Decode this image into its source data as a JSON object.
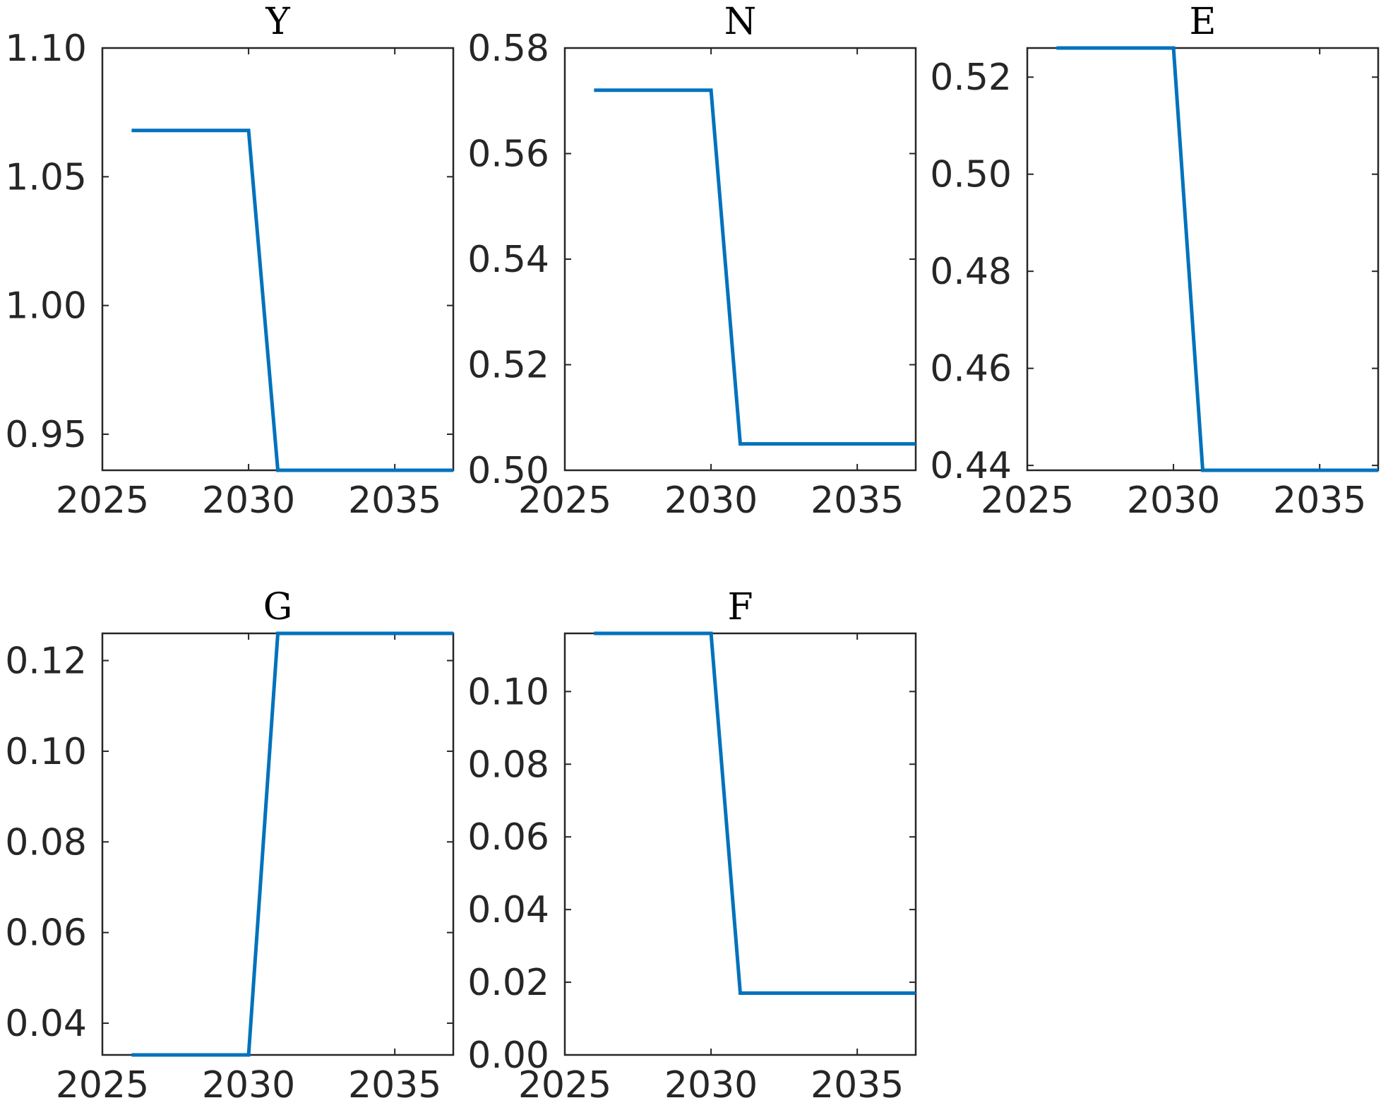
{
  "chart_data": [
    {
      "type": "line",
      "title": "Y",
      "xlabel": "",
      "ylabel": "",
      "xlim": [
        2025,
        2037
      ],
      "ylim": [
        0.936,
        1.1
      ],
      "xticks": [
        2025,
        2030,
        2035
      ],
      "xtick_labels": [
        "2025",
        "2030",
        "2035"
      ],
      "yticks": [
        0.95,
        1.0,
        1.05,
        1.1
      ],
      "ytick_labels": [
        "0.95",
        "1.00",
        "1.05",
        "1.10"
      ],
      "grid": false,
      "series": [
        {
          "color": "#0072BD",
          "x": [
            2026,
            2030,
            2031,
            2037
          ],
          "y": [
            1.068,
            1.068,
            0.936,
            0.936
          ]
        }
      ]
    },
    {
      "type": "line",
      "title": "N",
      "xlabel": "",
      "ylabel": "",
      "xlim": [
        2025,
        2037
      ],
      "ylim": [
        0.5,
        0.58
      ],
      "xticks": [
        2025,
        2030,
        2035
      ],
      "xtick_labels": [
        "2025",
        "2030",
        "2035"
      ],
      "yticks": [
        0.5,
        0.52,
        0.54,
        0.56,
        0.58
      ],
      "ytick_labels": [
        "0.50",
        "0.52",
        "0.54",
        "0.56",
        "0.58"
      ],
      "grid": false,
      "series": [
        {
          "color": "#0072BD",
          "x": [
            2026,
            2030,
            2031,
            2037
          ],
          "y": [
            0.572,
            0.572,
            0.505,
            0.505
          ]
        }
      ]
    },
    {
      "type": "line",
      "title": "E",
      "xlabel": "",
      "ylabel": "",
      "xlim": [
        2025,
        2037
      ],
      "ylim": [
        0.439,
        0.526
      ],
      "xticks": [
        2025,
        2030,
        2035
      ],
      "xtick_labels": [
        "2025",
        "2030",
        "2035"
      ],
      "yticks": [
        0.44,
        0.46,
        0.48,
        0.5,
        0.52
      ],
      "ytick_labels": [
        "0.44",
        "0.46",
        "0.48",
        "0.50",
        "0.52"
      ],
      "grid": false,
      "series": [
        {
          "color": "#0072BD",
          "x": [
            2026,
            2030,
            2031,
            2037
          ],
          "y": [
            0.526,
            0.526,
            0.439,
            0.439
          ]
        }
      ]
    },
    {
      "type": "line",
      "title": "G",
      "xlabel": "",
      "ylabel": "",
      "xlim": [
        2025,
        2037
      ],
      "ylim": [
        0.033,
        0.126
      ],
      "xticks": [
        2025,
        2030,
        2035
      ],
      "xtick_labels": [
        "2025",
        "2030",
        "2035"
      ],
      "yticks": [
        0.04,
        0.06,
        0.08,
        0.1,
        0.12
      ],
      "ytick_labels": [
        "0.04",
        "0.06",
        "0.08",
        "0.10",
        "0.12"
      ],
      "grid": false,
      "series": [
        {
          "color": "#0072BD",
          "x": [
            2026,
            2030,
            2031,
            2037
          ],
          "y": [
            0.033,
            0.033,
            0.126,
            0.126
          ]
        }
      ]
    },
    {
      "type": "line",
      "title": "F",
      "xlabel": "",
      "ylabel": "",
      "xlim": [
        2025,
        2037
      ],
      "ylim": [
        0.0,
        0.116
      ],
      "xticks": [
        2025,
        2030,
        2035
      ],
      "xtick_labels": [
        "2025",
        "2030",
        "2035"
      ],
      "yticks": [
        0.0,
        0.02,
        0.04,
        0.06,
        0.08,
        0.1
      ],
      "ytick_labels": [
        "0.00",
        "0.02",
        "0.04",
        "0.06",
        "0.08",
        "0.10"
      ],
      "grid": false,
      "series": [
        {
          "color": "#0072BD",
          "x": [
            2026,
            2030,
            2031,
            2037
          ],
          "y": [
            0.116,
            0.116,
            0.017,
            0.017
          ]
        }
      ]
    }
  ]
}
